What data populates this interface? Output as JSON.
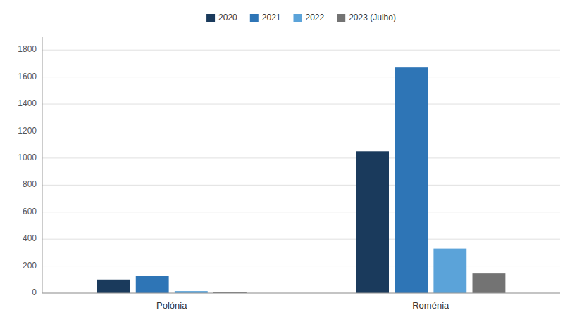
{
  "chart_data": {
    "type": "bar",
    "categories": [
      "Polónia",
      "Roménia"
    ],
    "series": [
      {
        "name": "2020",
        "color": "#1a3a5c",
        "values": [
          100,
          1050
        ]
      },
      {
        "name": "2021",
        "color": "#2e75b6",
        "values": [
          130,
          1670
        ]
      },
      {
        "name": "2022",
        "color": "#5ba3d9",
        "values": [
          15,
          330
        ]
      },
      {
        "name": "2023 (Julho)",
        "color": "#737373",
        "values": [
          10,
          145
        ]
      }
    ],
    "ylim": [
      0,
      1900
    ],
    "yticks": [
      0,
      200,
      400,
      600,
      800,
      1000,
      1200,
      1400,
      1600,
      1800
    ],
    "grid": true,
    "legend": "top"
  }
}
